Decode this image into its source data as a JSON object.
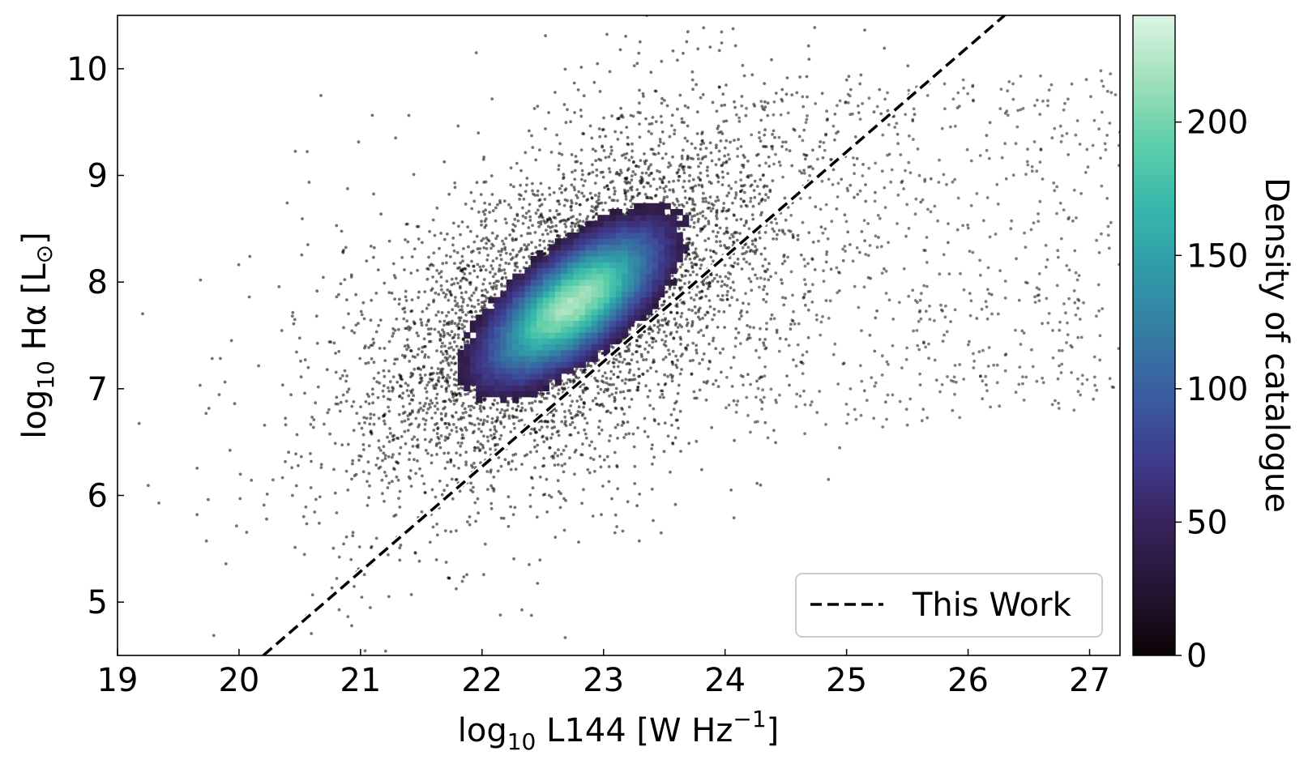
{
  "chart_data": {
    "type": "scatter",
    "title": "",
    "xlabel_main": "log",
    "xlabel_sub": "10",
    "xlabel_rest": " L144 [W Hz",
    "xlabel_sup": "−1",
    "xlabel_end": "]",
    "ylabel_main": "log",
    "ylabel_sub": "10",
    "ylabel_rest": " Hα [L",
    "ylabel_sym": "⊙",
    "ylabel_end": "]",
    "xlim": [
      19,
      27.25
    ],
    "ylim": [
      4.5,
      10.5
    ],
    "xticks": [
      "19",
      "20",
      "21",
      "22",
      "23",
      "24",
      "25",
      "26",
      "27"
    ],
    "yticks": [
      "5",
      "6",
      "7",
      "8",
      "9",
      "10"
    ],
    "grid": false,
    "density": {
      "center_x": 22.75,
      "center_y": 7.8,
      "correlation_slope": 0.95,
      "scatter_sigma_major": 0.9,
      "scatter_sigma_minor": 0.35,
      "peak_density": 240
    },
    "fit_line": {
      "name": "This Work",
      "x": [
        20.2,
        26.3
      ],
      "y": [
        4.5,
        10.5
      ],
      "style": "dashed",
      "color": "#000000"
    },
    "legend": {
      "placement": "lower-right",
      "entries": [
        "This Work"
      ]
    },
    "colorbar": {
      "label": "Density of catalogue",
      "range": [
        0,
        240
      ],
      "ticks": [
        "0",
        "50",
        "100",
        "150",
        "200"
      ],
      "colormap": "mako"
    }
  }
}
